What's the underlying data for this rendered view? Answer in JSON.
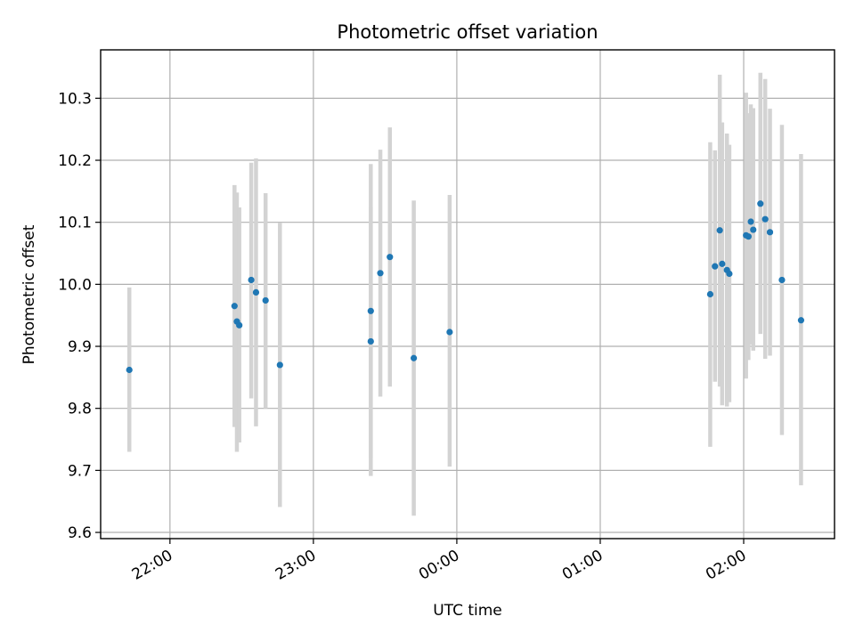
{
  "chart_data": {
    "type": "scatter",
    "title": "Photometric offset variation",
    "xlabel": "UTC time",
    "ylabel": "Photometric offset",
    "x_ticks": [
      "22:00",
      "23:00",
      "00:00",
      "01:00",
      "02:00"
    ],
    "y_ticks": [
      "9.6",
      "9.7",
      "9.8",
      "9.9",
      "10.0",
      "10.1",
      "10.2",
      "10.3"
    ],
    "xlim": [
      "21:31",
      "02:38"
    ],
    "ylim": [
      9.59,
      10.378
    ],
    "grid": true,
    "colors": {
      "point": "#1f77b4",
      "errorbar": "#d3d3d3",
      "grid": "#b0b0b0"
    },
    "points": [
      {
        "x": "21:43",
        "y": 9.862,
        "low": 9.73,
        "high": 9.995
      },
      {
        "x": "22:27",
        "y": 9.965,
        "low": 9.77,
        "high": 10.16
      },
      {
        "x": "22:28",
        "y": 9.94,
        "low": 9.73,
        "high": 10.148
      },
      {
        "x": "22:29",
        "y": 9.934,
        "low": 9.745,
        "high": 10.124
      },
      {
        "x": "22:34",
        "y": 10.007,
        "low": 9.816,
        "high": 10.196
      },
      {
        "x": "22:36",
        "y": 9.987,
        "low": 9.771,
        "high": 10.203
      },
      {
        "x": "22:40",
        "y": 9.974,
        "low": 9.8,
        "high": 10.147
      },
      {
        "x": "22:46",
        "y": 9.87,
        "low": 9.641,
        "high": 10.099
      },
      {
        "x": "23:24",
        "y": 9.908,
        "low": 9.691,
        "high": 10.125
      },
      {
        "x": "23:24",
        "y": 9.957,
        "low": 9.72,
        "high": 10.194
      },
      {
        "x": "23:28",
        "y": 10.018,
        "low": 9.819,
        "high": 10.217
      },
      {
        "x": "23:32",
        "y": 10.044,
        "low": 9.835,
        "high": 10.253
      },
      {
        "x": "23:42",
        "y": 9.881,
        "low": 9.627,
        "high": 10.135
      },
      {
        "x": "23:57",
        "y": 9.923,
        "low": 9.706,
        "high": 10.144
      },
      {
        "x": "01:46",
        "y": 9.984,
        "low": 9.738,
        "high": 10.229
      },
      {
        "x": "01:48",
        "y": 10.029,
        "low": 9.843,
        "high": 10.216
      },
      {
        "x": "01:50",
        "y": 10.087,
        "low": 9.835,
        "high": 10.338
      },
      {
        "x": "01:51",
        "y": 10.033,
        "low": 9.805,
        "high": 10.261
      },
      {
        "x": "01:53",
        "y": 10.023,
        "low": 9.803,
        "high": 10.243
      },
      {
        "x": "01:54",
        "y": 10.017,
        "low": 9.81,
        "high": 10.225
      },
      {
        "x": "02:01",
        "y": 10.079,
        "low": 9.848,
        "high": 10.309
      },
      {
        "x": "02:02",
        "y": 10.077,
        "low": 9.878,
        "high": 10.276
      },
      {
        "x": "02:03",
        "y": 10.101,
        "low": 9.903,
        "high": 10.29
      },
      {
        "x": "02:04",
        "y": 10.088,
        "low": 9.893,
        "high": 10.284
      },
      {
        "x": "02:07",
        "y": 10.13,
        "low": 9.92,
        "high": 10.341
      },
      {
        "x": "02:09",
        "y": 10.105,
        "low": 9.88,
        "high": 10.331
      },
      {
        "x": "02:11",
        "y": 10.084,
        "low": 9.885,
        "high": 10.283
      },
      {
        "x": "02:16",
        "y": 10.007,
        "low": 9.757,
        "high": 10.257
      },
      {
        "x": "02:24",
        "y": 9.942,
        "low": 9.676,
        "high": 10.21
      }
    ]
  }
}
